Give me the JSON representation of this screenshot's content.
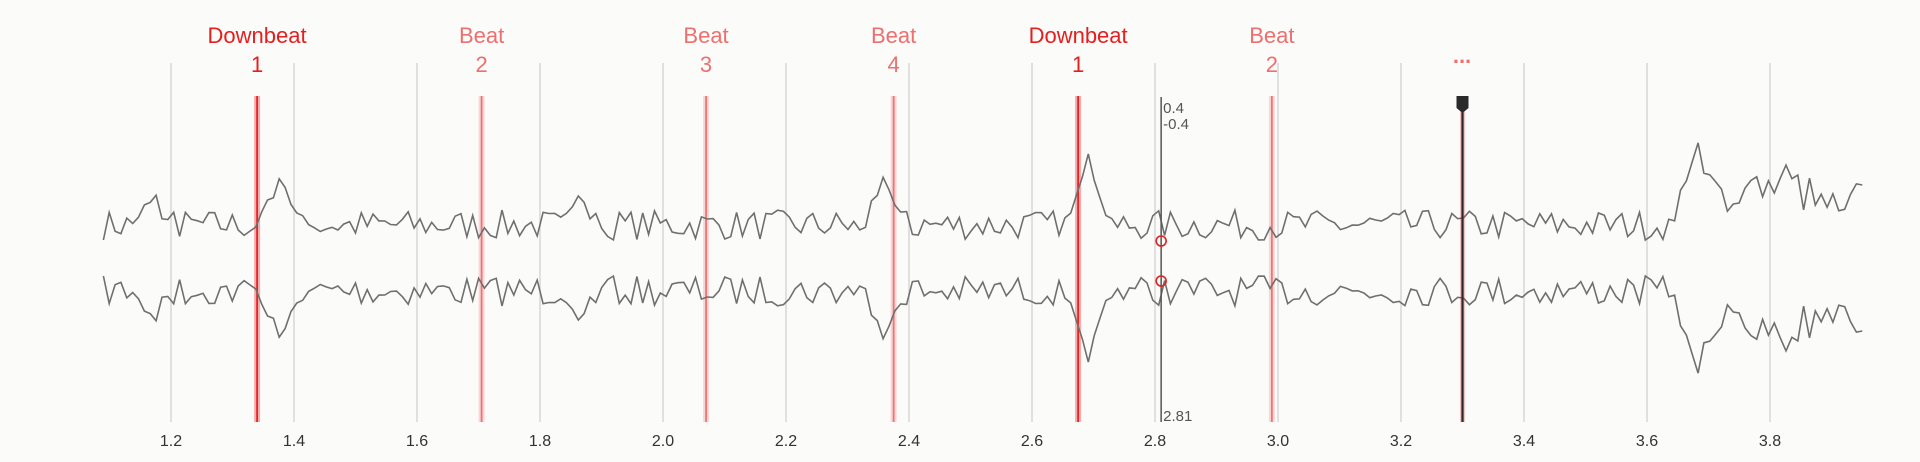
{
  "chart_data": {
    "type": "line",
    "x_range": [
      1.0,
      3.95
    ],
    "x_ticks": [
      "1.2",
      "1.4",
      "1.6",
      "1.8",
      "2.0",
      "2.2",
      "2.4",
      "2.6",
      "2.8",
      "3.0",
      "3.2",
      "3.4",
      "3.6",
      "3.8"
    ],
    "grid": true,
    "markers": [
      {
        "x": 1.34,
        "name": "Downbeat",
        "number": "1",
        "kind": "downbeat"
      },
      {
        "x": 1.705,
        "name": "Beat",
        "number": "2",
        "kind": "beat"
      },
      {
        "x": 2.07,
        "name": "Beat",
        "number": "3",
        "kind": "beat"
      },
      {
        "x": 2.375,
        "name": "Beat",
        "number": "4",
        "kind": "beat"
      },
      {
        "x": 2.675,
        "name": "Downbeat",
        "number": "1",
        "kind": "downbeat"
      },
      {
        "x": 2.99,
        "name": "Beat",
        "number": "2",
        "kind": "beat"
      }
    ],
    "more_indicator": "...",
    "cursor": {
      "x": 2.81,
      "top_value": "0.4",
      "bottom_value": "-0.4",
      "x_readout": "2.81"
    },
    "playhead": {
      "x": 3.3
    },
    "waveform": {
      "x_start": 1.09,
      "x_end": 3.95,
      "samples": 300
    }
  },
  "colors": {
    "downbeat": "#e51e1e",
    "beat": "#ee6f6f",
    "waveform": "#6f6f6f",
    "grid": "#d9d9d9",
    "playhead": "#2a2a2a"
  }
}
